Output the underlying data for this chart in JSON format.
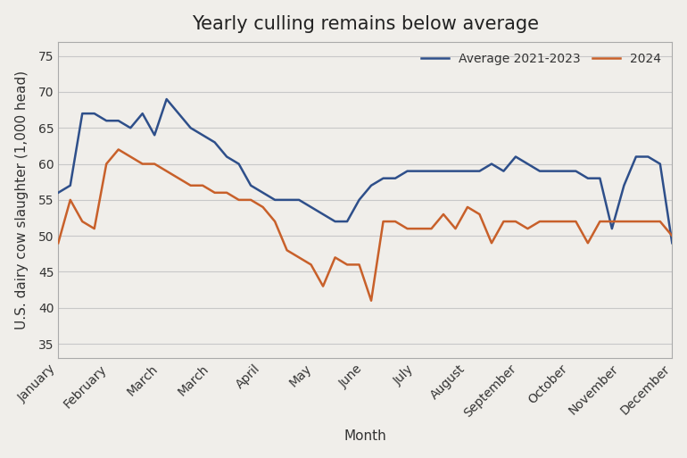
{
  "title": "Yearly culling remains below average",
  "xlabel": "Month",
  "ylabel": "U.S. dairy cow slaughter (1,000 head)",
  "ylim": [
    33,
    77
  ],
  "yticks": [
    35,
    40,
    45,
    50,
    55,
    60,
    65,
    70,
    75
  ],
  "x_labels": [
    "January",
    "February",
    "March",
    "March",
    "April",
    "May",
    "June",
    "July",
    "August",
    "September",
    "October",
    "November",
    "December"
  ],
  "avg_line": {
    "label": "Average 2021-2023",
    "color": "#2e4f8a",
    "linewidth": 1.8,
    "values": [
      56,
      57,
      67,
      67,
      66,
      66,
      65,
      67,
      64,
      69,
      67,
      65,
      64,
      63,
      61,
      60,
      57,
      56,
      55,
      55,
      55,
      54,
      53,
      52,
      52,
      55,
      57,
      58,
      58,
      59,
      59,
      59,
      59,
      59,
      59,
      59,
      60,
      59,
      61,
      60,
      59,
      59,
      59,
      59,
      58,
      58,
      51,
      57,
      61,
      61,
      60,
      49
    ]
  },
  "line2024": {
    "label": "2024",
    "color": "#c8602a",
    "linewidth": 1.8,
    "values": [
      49,
      55,
      52,
      51,
      60,
      62,
      61,
      60,
      60,
      59,
      58,
      57,
      57,
      56,
      56,
      55,
      55,
      54,
      52,
      48,
      47,
      46,
      43,
      47,
      46,
      46,
      41,
      52,
      52,
      51,
      51,
      51,
      53,
      51,
      54,
      53,
      49,
      52,
      52,
      51,
      52,
      52,
      52,
      52,
      49,
      52,
      52,
      52,
      52,
      52,
      52,
      50
    ]
  },
  "background_color": "#f0eeea",
  "plot_background": "#f0eeea",
  "grid_color": "#c8c8c8",
  "title_fontsize": 15,
  "label_fontsize": 11,
  "tick_fontsize": 10
}
